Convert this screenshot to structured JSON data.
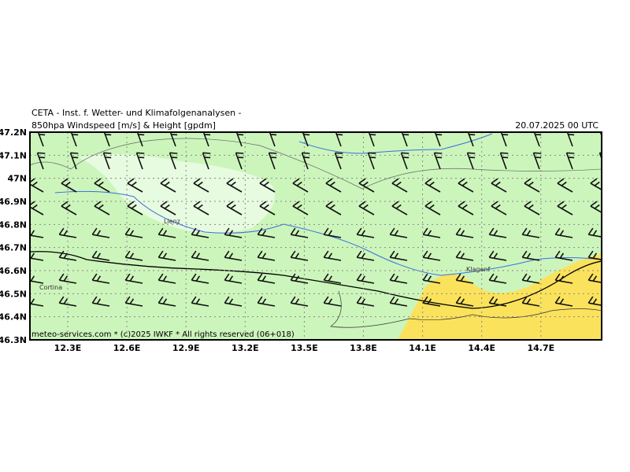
{
  "header": {
    "title": "CETA - Inst. f. Wetter- und Klimafolgenanalysen -",
    "subtitle": "850hpa Windspeed [m/s] & Height [gpdm]",
    "date": "20.07.2025 00 UTC"
  },
  "map": {
    "lat_labels": [
      "47.2N",
      "47.1N",
      "47N",
      "46.9N",
      "46.8N",
      "46.7N",
      "46.6N",
      "46.5N",
      "46.4N",
      "46.3N"
    ],
    "lon_labels": [
      "12.3E",
      "12.6E",
      "12.9E",
      "13.2E",
      "13.5E",
      "13.8E",
      "14.1E",
      "14.4E",
      "14.7E"
    ],
    "places": [
      "Lienz",
      "Cortina",
      "Klagenf"
    ],
    "footer": "meteo-services.com * (c)2025 IWKF * All rights reserved (06+018)"
  }
}
